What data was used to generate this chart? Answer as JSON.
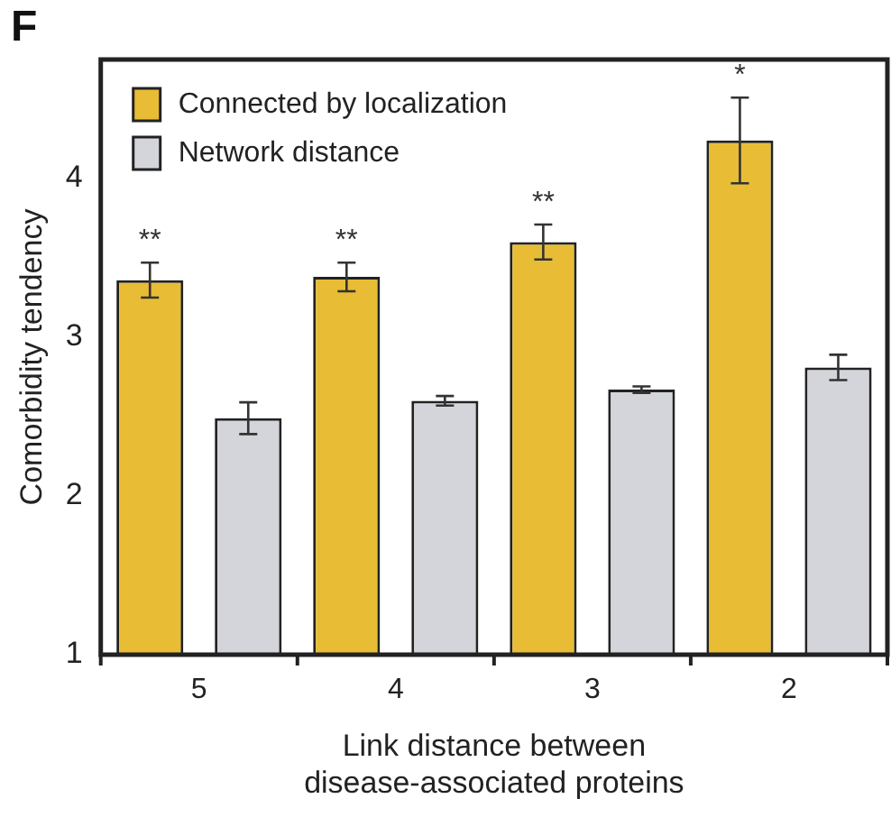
{
  "chart_data": {
    "type": "bar",
    "title": "F",
    "xlabel": "Link distance between\ndisease-associated proteins",
    "ylabel": "Comorbidity tendency",
    "categories": [
      "5",
      "4",
      "3",
      "2"
    ],
    "series": [
      {
        "name": "Connected by localization",
        "color": "#e8bd35",
        "values": [
          3.36,
          3.38,
          3.6,
          4.24
        ],
        "errors": [
          0.11,
          0.09,
          0.11,
          0.27
        ]
      },
      {
        "name": "Network distance",
        "color": "#d3d5da",
        "values": [
          2.49,
          2.6,
          2.67,
          2.81
        ],
        "errors": [
          0.1,
          0.03,
          0.02,
          0.08
        ]
      }
    ],
    "ylim": [
      1,
      4.75
    ],
    "yticks": [
      1,
      2,
      3,
      4
    ],
    "grid": false,
    "legend": "top left",
    "annotations": [
      "**",
      "**",
      "**",
      "*"
    ]
  }
}
